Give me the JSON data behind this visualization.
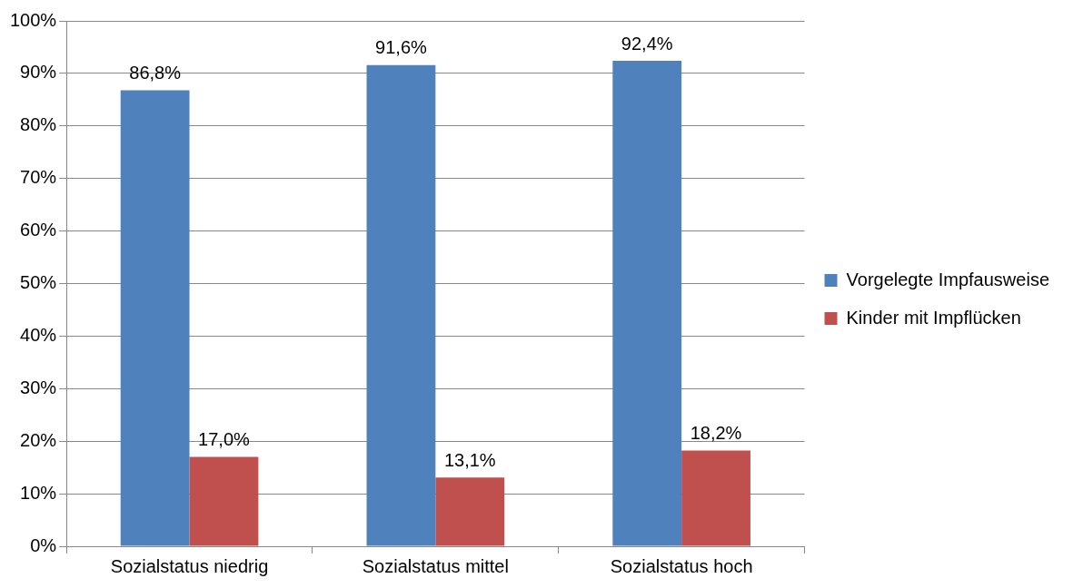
{
  "chart_data": {
    "type": "bar",
    "categories": [
      "Sozialstatus niedrig",
      "Sozialstatus mittel",
      "Sozialstatus hoch"
    ],
    "series": [
      {
        "name": "Vorgelegte Impfausweise",
        "color": "#4f81bd",
        "values": [
          86.8,
          91.6,
          92.4
        ],
        "value_labels": [
          "86,8%",
          "91,6%",
          "92,4%"
        ]
      },
      {
        "name": "Kinder mit Impflücken",
        "color": "#c0504d",
        "values": [
          17.0,
          13.1,
          18.2
        ],
        "value_labels": [
          "17,0%",
          "13,1%",
          "18,2%"
        ]
      }
    ],
    "ylim": [
      0,
      100
    ],
    "yticks": [
      {
        "value": 0,
        "label": "0%"
      },
      {
        "value": 10,
        "label": "10%"
      },
      {
        "value": 20,
        "label": "20%"
      },
      {
        "value": 30,
        "label": "30%"
      },
      {
        "value": 40,
        "label": "40%"
      },
      {
        "value": 50,
        "label": "50%"
      },
      {
        "value": 60,
        "label": "60%"
      },
      {
        "value": 70,
        "label": "70%"
      },
      {
        "value": 80,
        "label": "80%"
      },
      {
        "value": 90,
        "label": "90%"
      },
      {
        "value": 100,
        "label": "100%"
      }
    ],
    "grid": "y",
    "legend": "right"
  }
}
